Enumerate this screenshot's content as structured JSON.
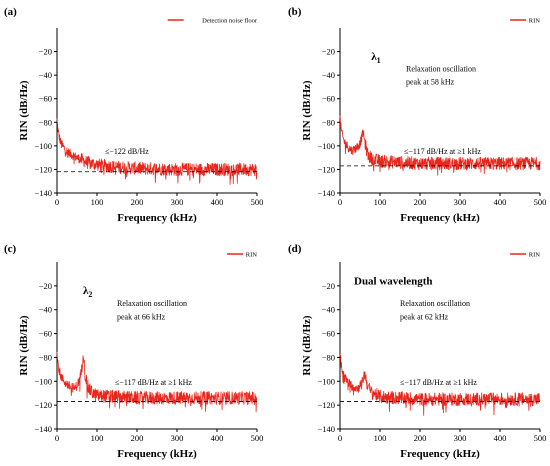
{
  "chart_data": [
    {
      "type": "line",
      "panel_label": "(a)",
      "xlabel": "Frequency (kHz)",
      "ylabel": "RIN (dB/Hz)",
      "xlim": [
        0,
        500
      ],
      "ylim": [
        -140,
        0
      ],
      "xticks": [
        0,
        100,
        200,
        300,
        400,
        500
      ],
      "yticks": [
        -140,
        -120,
        -100,
        -80,
        -60,
        -40,
        -20
      ],
      "legend": "Detection noise floor",
      "legend_position": "top-right",
      "series": [
        {
          "name": "Detection noise floor",
          "color": "#e8261c",
          "x": [
            0,
            2,
            5,
            10,
            20,
            30,
            50,
            75,
            100,
            150,
            200,
            250,
            300,
            350,
            400,
            450,
            500
          ],
          "y": [
            -78,
            -85,
            -92,
            -98,
            -103,
            -106,
            -110,
            -114,
            -116,
            -118,
            -119,
            -119.5,
            -120,
            -120,
            -120,
            -120,
            -120
          ]
        }
      ],
      "reference_level": -122,
      "annotations": [
        {
          "text": "≤−122 dB/Hz",
          "x": 120,
          "y": -107
        }
      ]
    },
    {
      "type": "line",
      "panel_label": "(b)",
      "xlabel": "Frequency (kHz)",
      "ylabel": "RIN (dB/Hz)",
      "xlim": [
        0,
        500
      ],
      "ylim": [
        -140,
        0
      ],
      "xticks": [
        0,
        100,
        200,
        300,
        400,
        500
      ],
      "yticks": [
        -140,
        -120,
        -100,
        -80,
        -60,
        -40,
        -20
      ],
      "legend": "RIN",
      "legend_position": "top-right",
      "series": [
        {
          "name": "RIN",
          "color": "#e8261c",
          "x": [
            0,
            2,
            5,
            10,
            20,
            30,
            40,
            50,
            55,
            58,
            62,
            70,
            80,
            100,
            150,
            200,
            300,
            400,
            500
          ],
          "y": [
            -76,
            -84,
            -90,
            -96,
            -101,
            -104,
            -102,
            -98,
            -92,
            -88,
            -97,
            -108,
            -111,
            -113,
            -114,
            -115,
            -115,
            -115,
            -115
          ]
        }
      ],
      "reference_level": -117,
      "annotations": [
        {
          "text": "λ",
          "subscript": "1",
          "x": 78,
          "y": -27
        },
        {
          "text": "Relaxation oscillation",
          "x": 165,
          "y": -37
        },
        {
          "text": "peak at 58 kHz",
          "x": 165,
          "y": -48
        },
        {
          "text": "≤−117 dB/Hz at ≥1 kHz",
          "x": 160,
          "y": -107
        }
      ]
    },
    {
      "type": "line",
      "panel_label": "(c)",
      "xlabel": "Frequency (kHz)",
      "ylabel": "RIN (dB/Hz)",
      "xlim": [
        0,
        500
      ],
      "ylim": [
        -140,
        0
      ],
      "xticks": [
        0,
        100,
        200,
        300,
        400,
        500
      ],
      "yticks": [
        -140,
        -120,
        -100,
        -80,
        -60,
        -40,
        -20
      ],
      "legend": "RIN",
      "legend_position": "top-right",
      "series": [
        {
          "name": "RIN",
          "color": "#e8261c",
          "x": [
            0,
            2,
            5,
            10,
            20,
            30,
            45,
            55,
            62,
            66,
            70,
            78,
            90,
            100,
            150,
            200,
            300,
            400,
            500
          ],
          "y": [
            -76,
            -84,
            -90,
            -96,
            -101,
            -104,
            -106,
            -100,
            -90,
            -74,
            -94,
            -106,
            -110,
            -112,
            -113,
            -114,
            -114,
            -114,
            -114
          ]
        }
      ],
      "reference_level": -117,
      "annotations": [
        {
          "text": "λ",
          "subscript": "2",
          "x": 65,
          "y": -27
        },
        {
          "text": "Relaxation oscillation",
          "x": 150,
          "y": -37
        },
        {
          "text": "peak at 66 kHz",
          "x": 150,
          "y": -48
        },
        {
          "text": "≤−117 dB/Hz at ≥1 kHz",
          "x": 145,
          "y": -103
        }
      ]
    },
    {
      "type": "line",
      "panel_label": "(d)",
      "xlabel": "Frequency (kHz)",
      "ylabel": "RIN (dB/Hz)",
      "xlim": [
        0,
        500
      ],
      "ylim": [
        -140,
        0
      ],
      "xticks": [
        0,
        100,
        200,
        300,
        400,
        500
      ],
      "yticks": [
        -140,
        -120,
        -100,
        -80,
        -60,
        -40,
        -20
      ],
      "legend": "RIN",
      "legend_position": "top-right",
      "series": [
        {
          "name": "RIN",
          "color": "#e8261c",
          "x": [
            0,
            2,
            5,
            10,
            20,
            30,
            45,
            55,
            60,
            62,
            66,
            75,
            90,
            100,
            150,
            200,
            300,
            400,
            500
          ],
          "y": [
            -76,
            -84,
            -90,
            -96,
            -101,
            -104,
            -106,
            -101,
            -96,
            -93,
            -100,
            -108,
            -111,
            -113,
            -114,
            -115,
            -115,
            -115,
            -115
          ]
        }
      ],
      "reference_level": -117,
      "annotations": [
        {
          "text": "Dual wavelength",
          "x": 35,
          "y": -19,
          "style": "large"
        },
        {
          "text": "Relaxation oscillation",
          "x": 150,
          "y": -37
        },
        {
          "text": "peak at 62 kHz",
          "x": 150,
          "y": -48
        },
        {
          "text": "≤−117 dB/Hz at ≥1 kHz",
          "x": 150,
          "y": -103
        }
      ]
    }
  ]
}
